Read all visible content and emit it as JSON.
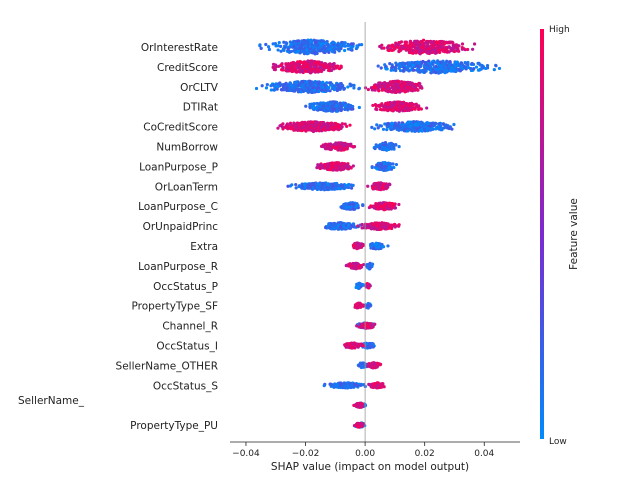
{
  "chart_data": {
    "type": "scatter",
    "subtype": "shap-beeswarm",
    "xlabel": "SHAP value (impact on model output)",
    "xlim": [
      -0.042,
      0.052
    ],
    "xticks": [
      -0.04,
      -0.02,
      0.0,
      0.02,
      0.04
    ],
    "xtick_labels": [
      "−0.04",
      "−0.02",
      "0.00",
      "0.02",
      "0.04"
    ],
    "grid": false,
    "colorbar": {
      "title": "Feature value",
      "high_label": "High",
      "low_label": "Low",
      "high_color": "#ff0052",
      "low_color": "#008bfb",
      "placement": "right"
    },
    "features": [
      {
        "name": "OrInterestRate",
        "low_range": [
          -0.038,
          0.002
        ],
        "high_range": [
          0.0,
          0.04
        ],
        "spread": 0.75
      },
      {
        "name": "CreditScore",
        "low_range": [
          0.0,
          0.048
        ],
        "high_range": [
          -0.034,
          -0.005
        ],
        "spread": 0.65
      },
      {
        "name": "OrCLTV",
        "low_range": [
          -0.038,
          0.0
        ],
        "high_range": [
          -0.002,
          0.023
        ],
        "spread": 0.6
      },
      {
        "name": "DTIRat",
        "low_range": [
          -0.022,
          0.0
        ],
        "high_range": [
          0.0,
          0.022
        ],
        "spread": 0.5
      },
      {
        "name": "CoCreditScore",
        "low_range": [
          0.0,
          0.034
        ],
        "high_range": [
          -0.033,
          -0.002
        ],
        "spread": 0.5
      },
      {
        "name": "NumBorrow",
        "low_range": [
          0.002,
          0.012
        ],
        "high_range": [
          -0.016,
          -0.002
        ],
        "spread": 0.4
      },
      {
        "name": "LoanPurpose_P",
        "low_range": [
          0.001,
          0.012
        ],
        "high_range": [
          -0.018,
          -0.002
        ],
        "spread": 0.4
      },
      {
        "name": "OrLoanTerm",
        "low_range": [
          -0.027,
          -0.001
        ],
        "high_range": [
          0.0,
          0.01
        ],
        "spread": 0.35
      },
      {
        "name": "LoanPurpose_C",
        "low_range": [
          -0.009,
          0.0
        ],
        "high_range": [
          0.0,
          0.013
        ],
        "spread": 0.35
      },
      {
        "name": "OrUnpaidPrinc",
        "low_range": [
          -0.016,
          0.0
        ],
        "high_range": [
          -0.003,
          0.013
        ],
        "spread": 0.35
      },
      {
        "name": "Extra",
        "low_range": [
          0.0,
          0.008
        ],
        "high_range": [
          -0.005,
          0.0
        ],
        "spread": 0.3
      },
      {
        "name": "LoanPurpose_R",
        "low_range": [
          0.0,
          0.003
        ],
        "high_range": [
          -0.007,
          0.0
        ],
        "spread": 0.3
      },
      {
        "name": "OccStatus_P",
        "low_range": [
          -0.004,
          0.0
        ],
        "high_range": [
          0.0,
          0.002
        ],
        "spread": 0.25
      },
      {
        "name": "PropertyType_SF",
        "low_range": [
          0.0,
          0.002
        ],
        "high_range": [
          -0.004,
          0.0
        ],
        "spread": 0.25
      },
      {
        "name": "Channel_R",
        "low_range": [
          -0.004,
          0.004
        ],
        "high_range": [
          -0.003,
          0.004
        ],
        "spread": 0.25
      },
      {
        "name": "OccStatus_I",
        "low_range": [
          -0.002,
          0.004
        ],
        "high_range": [
          -0.008,
          0.0
        ],
        "spread": 0.25
      },
      {
        "name": "SellerName_OTHER",
        "low_range": [
          -0.003,
          0.001
        ],
        "high_range": [
          0.0,
          0.006
        ],
        "spread": 0.25
      },
      {
        "name": "OccStatus_S",
        "low_range": [
          -0.015,
          0.002
        ],
        "high_range": [
          0.0,
          0.008
        ],
        "spread": 0.25
      },
      {
        "name": "SellerName_",
        "low_range": [
          -0.004,
          0.001
        ],
        "high_range": [
          -0.004,
          0.0
        ],
        "spread": 0.2
      },
      {
        "name": "PropertyType_PU",
        "low_range": [
          -0.004,
          0.001
        ],
        "high_range": [
          -0.004,
          0.0
        ],
        "spread": 0.2
      }
    ]
  }
}
